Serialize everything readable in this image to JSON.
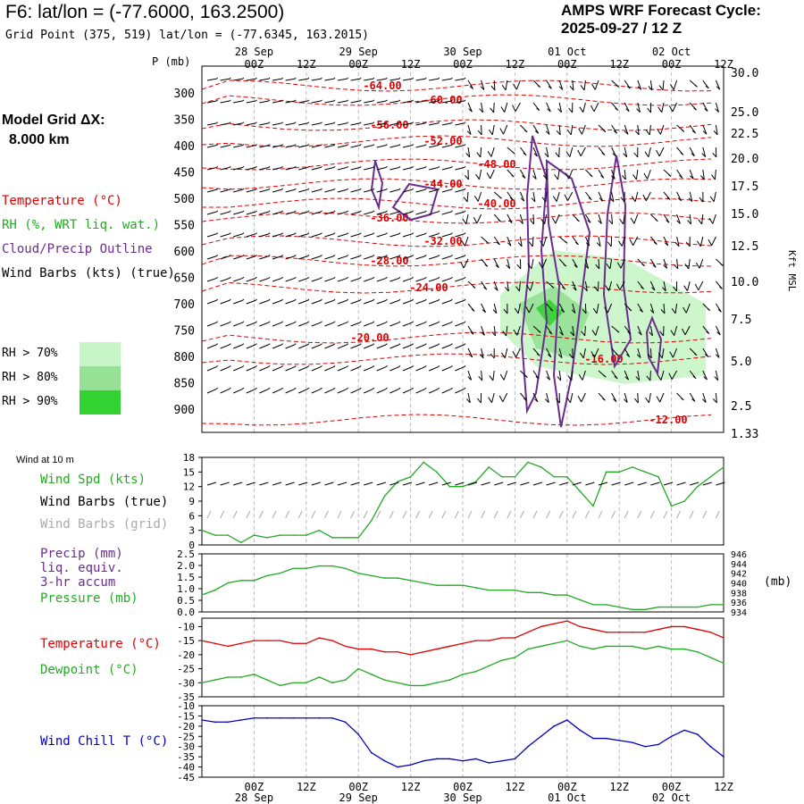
{
  "header": {
    "title": "F6:  lat/lon = (-77.6000, 163.2500)",
    "subtitle": "Grid Point (375, 519) lat/lon = (-77.6345, 163.2015)",
    "cycle_line1": "AMPS WRF Forecast Cycle:",
    "cycle_line2": "2025-09-27 / 12  Z"
  },
  "model_grid": {
    "label": "Model Grid ΔX:",
    "value": "8.000 km"
  },
  "legend_top": {
    "temperature": "Temperature (°C)",
    "rh": "RH (%, WRT liq. wat.)",
    "cloud": "Cloud/Precip Outline",
    "wind": "Wind Barbs (kts) (true)",
    "rh_levels": [
      {
        "label": "RH > 70%",
        "color": "#c8f5c8"
      },
      {
        "label": "RH > 80%",
        "color": "#96e196"
      },
      {
        "label": "RH > 90%",
        "color": "#32d232"
      }
    ]
  },
  "time_axis": {
    "ticks": [
      "00Z",
      "12Z",
      "00Z",
      "12Z",
      "00Z",
      "12Z",
      "00Z",
      "12Z",
      "00Z",
      "12Z"
    ],
    "dates": [
      "28 Sep",
      "29 Sep",
      "30 Sep",
      "01 Oct",
      "02 Oct"
    ],
    "p_label": "P (mb)"
  },
  "panel2_legend": {
    "header": "Wind at 10 m",
    "spd": "Wind Spd (kts)",
    "barbs_true": "Wind Barbs (true)",
    "barbs_grid": "Wind Barbs (grid)"
  },
  "panel3_legend": {
    "precip1": "Precip (mm)",
    "precip2": "liq. equiv.",
    "precip3": "3-hr accum",
    "pressure": "Pressure (mb)",
    "unit": "(mb)"
  },
  "panel4_legend": {
    "temp": "Temperature (°C)",
    "dew": "Dewpoint (°C)"
  },
  "panel5_legend": {
    "chill": "Wind Chill T (°C)"
  },
  "right_axis_label": "Kft MSL",
  "colors": {
    "temperature": "#dd0000",
    "rh": "#22aa22",
    "cloud": "#6a2c8f",
    "wind": "#000000",
    "grid_barbs": "#aaaaaa",
    "wind_chill": "#0000bb"
  },
  "chart_data": [
    {
      "type": "line",
      "panel": "cross-section",
      "xlabel": "",
      "ylabel": "P (mb)",
      "y_pressure_ticks": [
        "300",
        "350",
        "400",
        "450",
        "500",
        "550",
        "600",
        "650",
        "700",
        "750",
        "800",
        "850",
        "900"
      ],
      "y_height_ticks": [
        "30.0",
        "25.0",
        "22.5",
        "20.0",
        "17.5",
        "15.0",
        "12.5",
        "10.0",
        "7.5",
        "5.0",
        "2.5",
        "1.33"
      ],
      "isotherm_labels": [
        "-64.00",
        "-60.00",
        "-56.00",
        "-52.00",
        "-48.00",
        "-44.00",
        "-40.00",
        "-36.00",
        "-32.00",
        "-28.00",
        "-24.00",
        "-20.00",
        "-16.00",
        "-12.00"
      ]
    },
    {
      "type": "line",
      "panel": "wind10m",
      "ylim": [
        0,
        18
      ],
      "y_ticks": [
        "18",
        "15",
        "12",
        "9",
        "6",
        "3",
        "0"
      ],
      "series": [
        {
          "name": "Wind Spd (kts)",
          "x": [
            0,
            1,
            2,
            3,
            4,
            5,
            6,
            7,
            8,
            9,
            10,
            11,
            12,
            13,
            14,
            15,
            16,
            17,
            18,
            19,
            20,
            21,
            22,
            23,
            24,
            25,
            26,
            27,
            28,
            29,
            30,
            31,
            32,
            33,
            34,
            35,
            36,
            37,
            38,
            39,
            40
          ],
          "values": [
            3,
            2,
            2,
            0.5,
            2,
            1.5,
            2,
            2,
            2,
            3,
            1.5,
            1.5,
            1.5,
            5,
            10,
            13,
            14,
            17,
            15,
            12,
            12,
            13,
            16,
            14,
            14,
            17,
            16,
            14,
            14,
            11,
            8,
            15,
            15,
            16,
            15,
            14,
            8,
            9,
            12,
            14,
            16
          ]
        }
      ]
    },
    {
      "type": "line",
      "panel": "pressure",
      "ylim": [
        934,
        946
      ],
      "y_ticks_left": [
        "2.5",
        "2.0",
        "1.5",
        "1.0",
        "0.5",
        "0.0"
      ],
      "y_ticks_right": [
        "946",
        "944",
        "942",
        "940",
        "938",
        "936",
        "934"
      ],
      "series": [
        {
          "name": "Pressure (mb)",
          "x": [
            0,
            1,
            2,
            3,
            4,
            5,
            6,
            7,
            8,
            9,
            10,
            11,
            12,
            13,
            14,
            15,
            16,
            17,
            18,
            19,
            20,
            21,
            22,
            23,
            24,
            25,
            26,
            27,
            28,
            29,
            30,
            31,
            32,
            33,
            34,
            35,
            36,
            37,
            38,
            39,
            40
          ],
          "values": [
            937.5,
            938.5,
            940,
            940.5,
            940.5,
            941.5,
            942,
            943,
            943,
            943.5,
            943.5,
            943,
            942,
            941.5,
            941,
            941,
            940.5,
            940,
            939.5,
            939.5,
            939.5,
            939,
            938.5,
            938.5,
            938.5,
            938,
            938,
            937.5,
            937.5,
            936.5,
            935.5,
            935.5,
            935,
            934.5,
            934.5,
            935,
            935,
            935,
            935,
            935.5,
            935.5
          ]
        }
      ]
    },
    {
      "type": "line",
      "panel": "temperature",
      "ylim": [
        -35,
        -7
      ],
      "y_ticks": [
        "-10",
        "-15",
        "-20",
        "-25",
        "-30",
        "-35"
      ],
      "series": [
        {
          "name": "Temperature (°C)",
          "x": [
            0,
            1,
            2,
            3,
            4,
            5,
            6,
            7,
            8,
            9,
            10,
            11,
            12,
            13,
            14,
            15,
            16,
            17,
            18,
            19,
            20,
            21,
            22,
            23,
            24,
            25,
            26,
            27,
            28,
            29,
            30,
            31,
            32,
            33,
            34,
            35,
            36,
            37,
            38,
            39,
            40
          ],
          "values": [
            -15,
            -16,
            -17,
            -16,
            -15,
            -15,
            -15,
            -16,
            -16,
            -14,
            -15,
            -17,
            -18,
            -18,
            -19,
            -19,
            -20,
            -19,
            -18,
            -17,
            -16,
            -15,
            -15,
            -14,
            -14,
            -12,
            -10,
            -9,
            -8,
            -10,
            -11,
            -12,
            -12,
            -12,
            -12,
            -11,
            -10,
            -10,
            -11,
            -12,
            -14
          ]
        },
        {
          "name": "Dewpoint (°C)",
          "x": [
            0,
            1,
            2,
            3,
            4,
            5,
            6,
            7,
            8,
            9,
            10,
            11,
            12,
            13,
            14,
            15,
            16,
            17,
            18,
            19,
            20,
            21,
            22,
            23,
            24,
            25,
            26,
            27,
            28,
            29,
            30,
            31,
            32,
            33,
            34,
            35,
            36,
            37,
            38,
            39,
            40
          ],
          "values": [
            -30,
            -29,
            -28,
            -28,
            -27,
            -29,
            -31,
            -30,
            -30,
            -28,
            -30,
            -29,
            -25,
            -27,
            -29,
            -30,
            -31,
            -31,
            -30,
            -29,
            -27,
            -26,
            -24,
            -22,
            -21,
            -18,
            -17,
            -16,
            -15,
            -17,
            -18,
            -17,
            -17,
            -17,
            -18,
            -17,
            -18,
            -18,
            -19,
            -21,
            -23
          ]
        }
      ]
    },
    {
      "type": "line",
      "panel": "wind_chill",
      "ylim": [
        -45,
        -10
      ],
      "y_ticks": [
        "-10",
        "-15",
        "-20",
        "-25",
        "-30",
        "-35",
        "-40",
        "-45"
      ],
      "series": [
        {
          "name": "Wind Chill T (°C)",
          "x": [
            0,
            1,
            2,
            3,
            4,
            5,
            6,
            7,
            8,
            9,
            10,
            11,
            12,
            13,
            14,
            15,
            16,
            17,
            18,
            19,
            20,
            21,
            22,
            23,
            24,
            25,
            26,
            27,
            28,
            29,
            30,
            31,
            32,
            33,
            34,
            35,
            36,
            37,
            38,
            39,
            40
          ],
          "values": [
            -17,
            -18,
            -18,
            -17,
            -16,
            -16,
            -16,
            -16,
            -16,
            -16,
            -16,
            -18,
            -24,
            -33,
            -37,
            -40,
            -39,
            -37,
            -36,
            -36,
            -37,
            -36,
            -38,
            -37,
            -36,
            -30,
            -25,
            -20,
            -17,
            -22,
            -26,
            -26,
            -27,
            -28,
            -30,
            -29,
            -25,
            -22,
            -24,
            -30,
            -35
          ]
        }
      ]
    }
  ]
}
